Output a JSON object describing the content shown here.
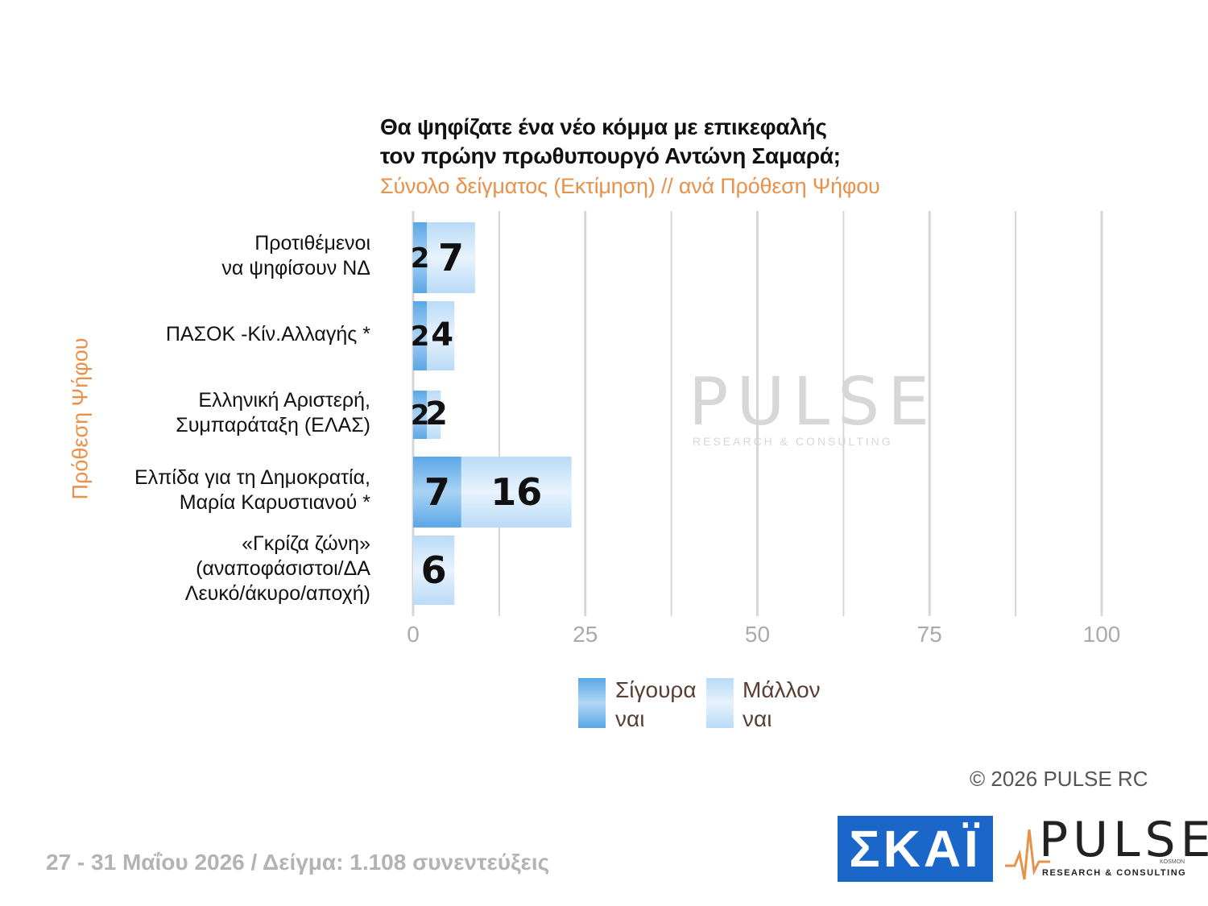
{
  "chart_data": {
    "type": "bar",
    "orientation": "horizontal",
    "stacked": true,
    "title_line1": "Θα ψηφίζατε ένα νέο κόμμα με επικεφαλής",
    "title_line2": "τον πρώην πρωθυπουργό Αντώνη Σαμαρά;",
    "subtitle": "Σύνολο δείγματος (Εκτίμηση) // ανά Πρόθεση Ψήφου",
    "ylabel": "Πρόθεση Ψήφου",
    "xlim": [
      0,
      100
    ],
    "xticks": [
      "0",
      "25",
      "50",
      "75",
      "100"
    ],
    "grid": true,
    "categories": [
      [
        "Προτιθέμενοι",
        "να ψηφίσουν ΝΔ"
      ],
      [
        "ΠΑΣΟΚ -Κίν.Αλλαγής *"
      ],
      [
        "Ελληνική Αριστερή,",
        "Συμπαράταξη (ΕΛΑΣ)"
      ],
      [
        "Ελπίδα για τη Δημοκρατία,",
        "Μαρία Καρυστιανού *"
      ],
      [
        "«Γκρίζα ζώνη»",
        "(αναποφάσιστοι/ΔΑ",
        "Λευκό/άκυρο/αποχή)"
      ]
    ],
    "series": [
      {
        "name": "Σίγουρα ναι",
        "legend_line1": "Σίγουρα",
        "legend_line2": "ναι",
        "color": "#5aa7e6",
        "values": [
          2,
          2,
          2,
          7,
          null
        ]
      },
      {
        "name": "Μάλλον ναι",
        "legend_line1": "Μάλλον",
        "legend_line2": "ναι",
        "color": "#b9dbf7",
        "values": [
          7,
          4,
          2,
          16,
          6
        ]
      }
    ],
    "legend_position": "bottom"
  },
  "watermark": {
    "word": "PULSE",
    "sub": "RESEARCH & CONSULTING"
  },
  "copyright": "©  2026  PULSE RC",
  "footer": "27 - 31  Μαΐου 2026  /  Δείγμα:  1.108 συνεντεύξεις",
  "logos": {
    "skai": "ΣΚΑΪ",
    "pulse": "PULSE",
    "pulse_sub": "RESEARCH & CONSULTING",
    "pulse_kosmon": "KOSMON"
  }
}
